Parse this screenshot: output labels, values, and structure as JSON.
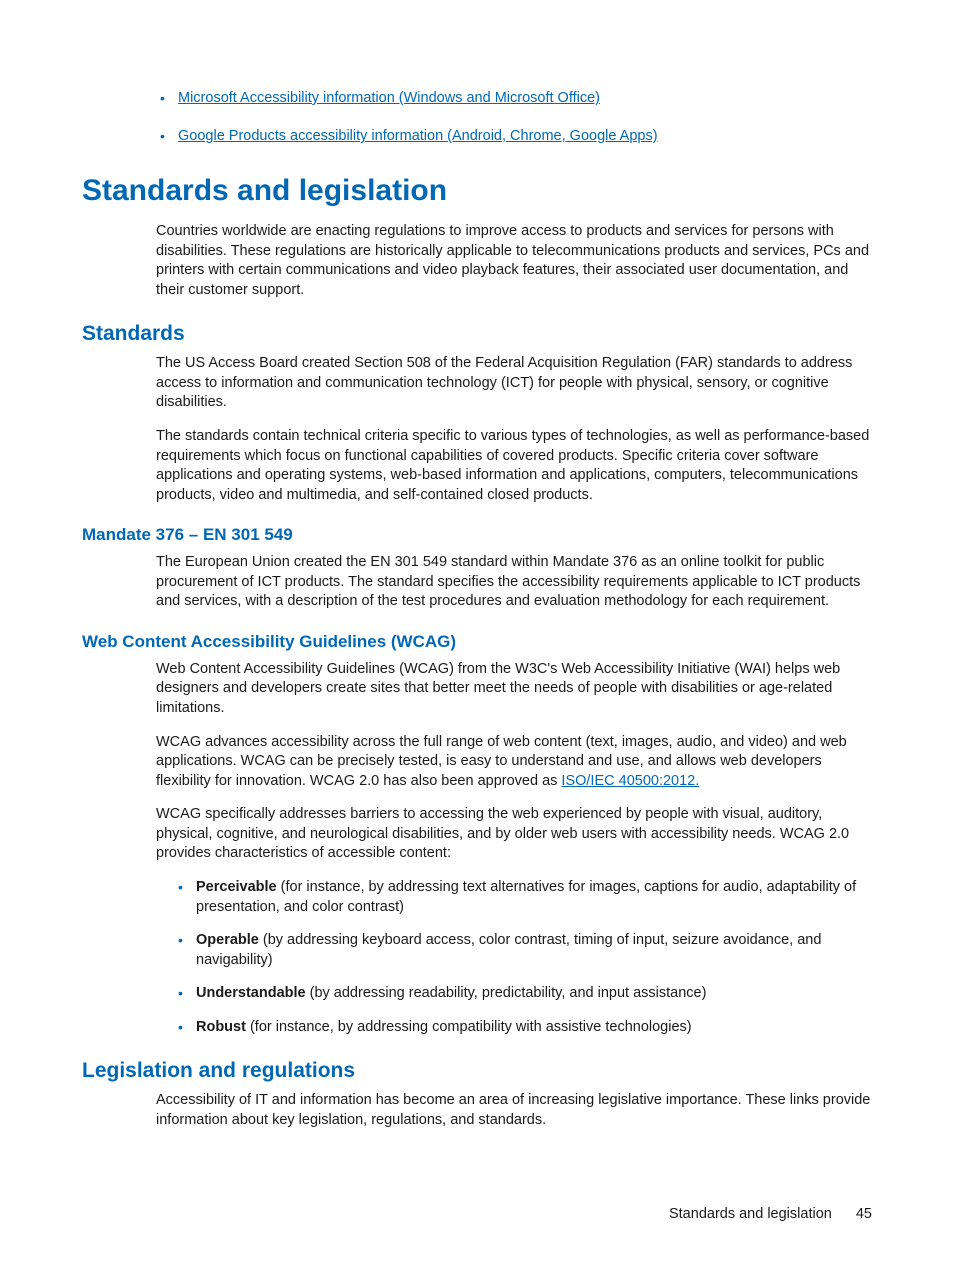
{
  "topLinks": [
    "Microsoft Accessibility information (Windows and Microsoft Office)",
    "Google Products accessibility information (Android, Chrome, Google Apps)"
  ],
  "h1": "Standards and legislation",
  "intro": "Countries worldwide are enacting regulations to improve access to products and services for persons with disabilities. These regulations are historically applicable to telecommunications products and services, PCs and printers with certain communications and video playback features, their associated user documentation, and their customer support.",
  "standards": {
    "heading": "Standards",
    "p1": "The US Access Board created Section 508 of the Federal Acquisition Regulation (FAR) standards to address access to information and communication technology (ICT) for people with physical, sensory, or cognitive disabilities.",
    "p2": "The standards contain technical criteria specific to various types of technologies, as well as performance-based requirements which focus on functional capabilities of covered products. Specific criteria cover software applications and operating systems, web-based information and applications, computers, telecommunications products, video and multimedia, and self-contained closed products."
  },
  "mandate": {
    "heading": "Mandate 376 – EN 301 549",
    "p1": "The European Union created the EN 301 549 standard within Mandate 376 as an online toolkit for public procurement of ICT products. The standard specifies the accessibility requirements applicable to ICT products and services, with a description of the test procedures and evaluation methodology for each requirement."
  },
  "wcag": {
    "heading": "Web Content Accessibility Guidelines (WCAG)",
    "p1": "Web Content Accessibility Guidelines (WCAG) from the W3C's Web Accessibility Initiative (WAI) helps web designers and developers create sites that better meet the needs of people with disabilities or age-related limitations.",
    "p2_pre": "WCAG advances accessibility across the full range of web content (text, images, audio, and video) and web applications. WCAG can be precisely tested, is easy to understand and use, and allows web developers flexibility for innovation. WCAG 2.0 has also been approved as ",
    "p2_link": "ISO/IEC 40500:2012.",
    "p3": "WCAG specifically addresses barriers to accessing the web experienced by people with visual, auditory, physical, cognitive, and neurological disabilities, and by older web users with accessibility needs. WCAG 2.0 provides characteristics of accessible content:",
    "bullets": [
      {
        "term": "Perceivable",
        "rest": " (for instance, by addressing text alternatives for images, captions for audio, adaptability of presentation, and color contrast)"
      },
      {
        "term": "Operable",
        "rest": " (by addressing keyboard access, color contrast, timing of input, seizure avoidance, and navigability)"
      },
      {
        "term": "Understandable",
        "rest": " (by addressing readability, predictability, and input assistance)"
      },
      {
        "term": "Robust",
        "rest": " (for instance, by addressing compatibility with assistive technologies)"
      }
    ]
  },
  "legislation": {
    "heading": "Legislation and regulations",
    "p1": "Accessibility of IT and information has become an area of increasing legislative importance. These links provide information about key legislation, regulations, and standards."
  },
  "footer": {
    "label": "Standards and legislation",
    "pageNum": "45"
  }
}
